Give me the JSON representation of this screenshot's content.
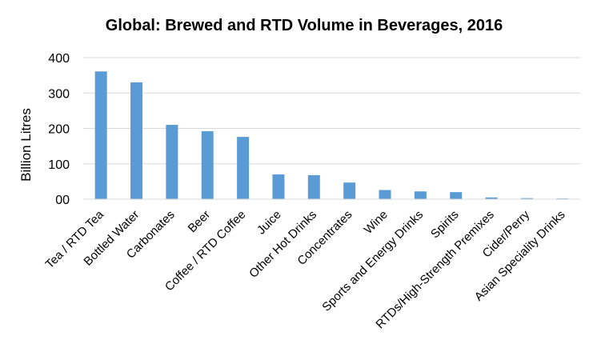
{
  "chart_data": {
    "type": "bar",
    "title": "Global:  Brewed and RTD Volume in Beverages, 2016",
    "xlabel": "",
    "ylabel": "Billion Litres",
    "ylim": [
      0,
      400
    ],
    "yticks": [
      "00",
      "100",
      "200",
      "300",
      "400"
    ],
    "ytick_values": [
      0,
      100,
      200,
      300,
      400
    ],
    "grid": true,
    "bar_color": "#5b9bd5",
    "categories": [
      "Tea / RTD Tea",
      "Bottled Water",
      "Carbonates",
      "Beer",
      "Coffee / RTD Coffee",
      "Juice",
      "Other Hot Drinks",
      "Concentrates",
      "Wine",
      "Sports and Energy Drinks",
      "Spirits",
      "RTDs/High-Strength Premixes",
      "Cider/Perry",
      "Asian Speciality Drinks"
    ],
    "values": [
      361,
      330,
      210,
      192,
      176,
      70,
      68,
      47,
      26,
      22,
      20,
      5,
      3,
      2
    ]
  }
}
